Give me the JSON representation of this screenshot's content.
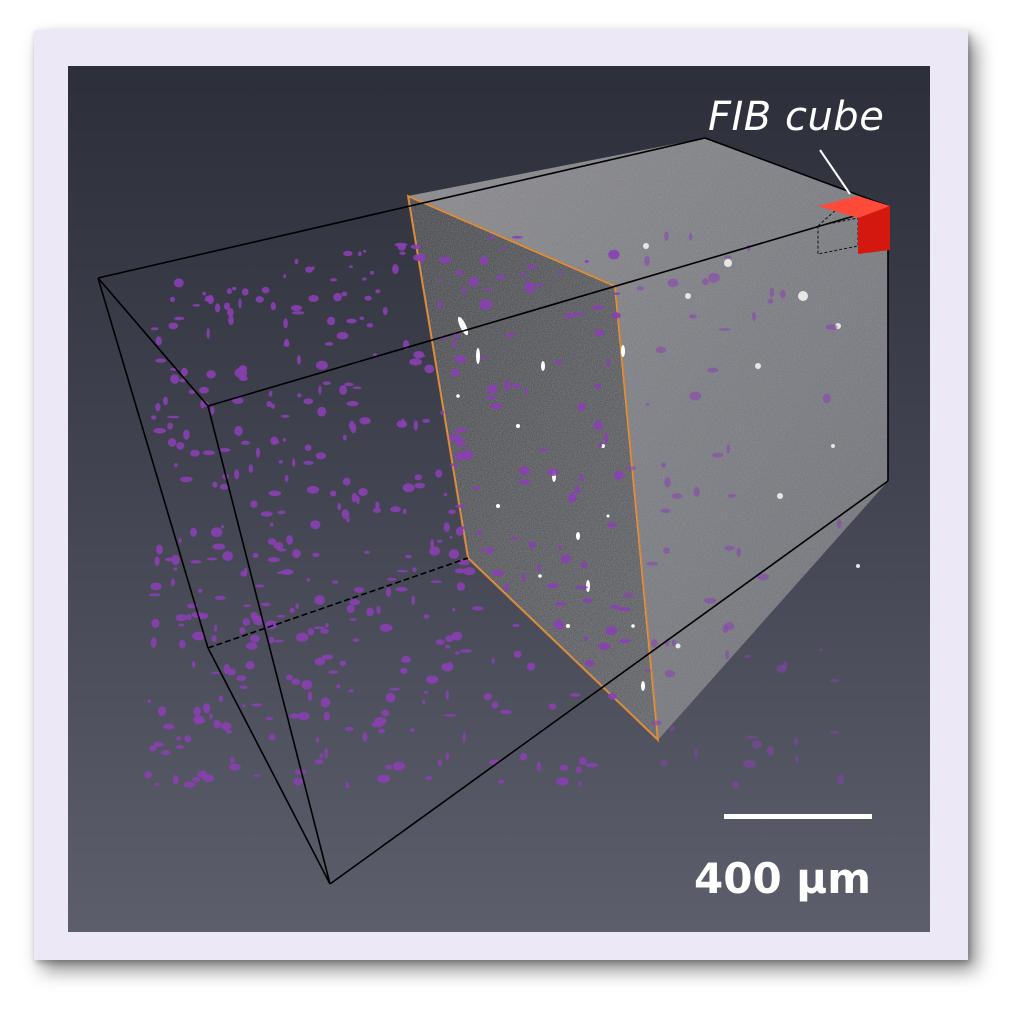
{
  "figure": {
    "annotation_label": "FIB cube",
    "scale_bar_label": "400 µm"
  },
  "colors": {
    "frame_background": "#ece8f6",
    "viewer_top": "#2c2f39",
    "viewer_bottom": "#5c5f6b",
    "particles": "#8a3fb2",
    "fib_cube": "#e3201b",
    "slice_outline": "#d9822b",
    "box_edges": "#000000"
  },
  "icons": {
    "fib_cube": "red-cube-icon",
    "scale_bar": "scale-bar-line"
  }
}
